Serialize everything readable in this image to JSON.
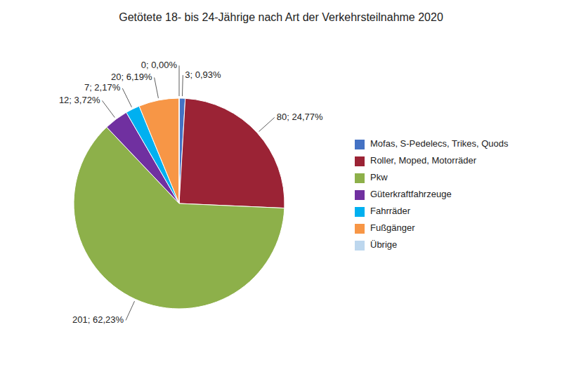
{
  "chart_data": {
    "type": "pie",
    "title": "Getötete 18- bis 24-Jährige nach Art der Verkehrsteilnahme 2020",
    "categories": [
      "Mofas, S-Pedelecs, Trikes, Quods",
      "Roller, Moped, Motorräder",
      "Pkw",
      "Güterkraftfahrzeuge",
      "Fahrräder",
      "Fußgänger",
      "Übrige"
    ],
    "values": [
      3,
      80,
      201,
      12,
      7,
      20,
      0
    ],
    "value_labels": [
      "3; 0,93%",
      "80; 24,77%",
      "201; 62,23%",
      "12; 3,72%",
      "7; 2,17%",
      "20; 6,19%",
      "0; 0,00%"
    ],
    "colors": [
      "#4472C4",
      "#9B2335",
      "#8DB04A",
      "#7030A0",
      "#00B0F0",
      "#F79646",
      "#BDD7EE"
    ],
    "data_labels": true,
    "legend": "right"
  }
}
